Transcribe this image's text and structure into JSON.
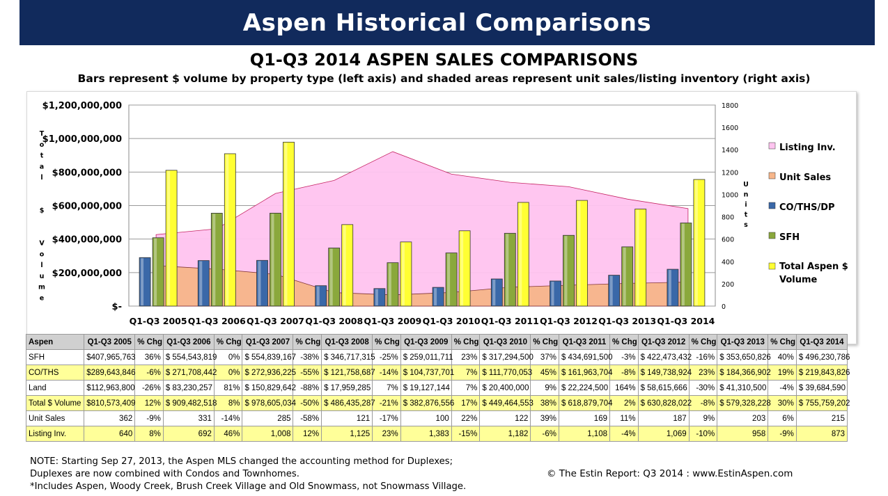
{
  "banner": "Aspen Historical Comparisons",
  "title": "Q1-Q3 2014 ASPEN SALES COMPARISONS",
  "subtitle": "Bars represent $ volume by property type (left axis) and shaded areas represent unit sales/listing inventory (right axis)",
  "chart_data": {
    "type": "bar",
    "categories": [
      "Q1-Q3 2005",
      "Q1-Q3 2006",
      "Q1-Q3 2007",
      "Q1-Q3 2008",
      "Q1-Q3 2009",
      "Q1-Q3 2010",
      "Q1-Q3 2011",
      "Q1-Q3 2012",
      "Q1-Q3 2013",
      "Q1-Q3 2014"
    ],
    "left_axis": {
      "label": "Total $ Volume",
      "ylim": [
        0,
        1200000000
      ],
      "ticks": [
        "$-",
        "$200,000,000",
        "$400,000,000",
        "$600,000,000",
        "$800,000,000",
        "$1,000,000,000",
        "$1,200,000,000"
      ]
    },
    "right_axis": {
      "label": "Units",
      "ylim": [
        0,
        1800
      ],
      "ticks": [
        "0",
        "200",
        "400",
        "600",
        "800",
        "1000",
        "1200",
        "1400",
        "1600",
        "1800"
      ]
    },
    "bar_series": [
      {
        "name": "CO/THS/DP",
        "color": "#3a68a8",
        "values": [
          289643846,
          271708442,
          272936225,
          121758687,
          104737701,
          111770053,
          161963704,
          149738924,
          184366902,
          219843826
        ]
      },
      {
        "name": "SFH",
        "color": "#8aa83c",
        "values": [
          407965763,
          554543819,
          554839167,
          346717315,
          259011711,
          317294500,
          434691500,
          422473432,
          353650826,
          496230786
        ]
      },
      {
        "name": "Total Aspen $ Volume",
        "color": "#ffff33",
        "values": [
          810573409,
          909482518,
          978605034,
          486435287,
          382876556,
          449464553,
          618879704,
          630828022,
          579328228,
          755759202
        ]
      }
    ],
    "area_series": [
      {
        "name": "Listing Inv.",
        "color": "#ffc4f0",
        "values": [
          640,
          692,
          1008,
          1125,
          1383,
          1182,
          1108,
          1069,
          958,
          873
        ]
      },
      {
        "name": "Unit Sales",
        "color": "#f7b68a",
        "values": [
          362,
          331,
          285,
          121,
          100,
          122,
          169,
          187,
          203,
          215
        ]
      }
    ],
    "legend": [
      "Listing Inv.",
      "Unit Sales",
      "CO/THS/DP",
      "SFH",
      "Total Aspen $ Volume"
    ],
    "legend_position": "right"
  },
  "table": {
    "header": [
      "Aspen",
      "Q1-Q3 2005",
      "% Chg",
      "Q1-Q3 2006",
      "% Chg",
      "Q1-Q3 2007",
      "% Chg",
      "Q1-Q3 2008",
      "% Chg",
      "Q1-Q3 2009",
      "% Chg",
      "Q1-Q3 2010",
      "% Chg",
      "Q1-Q3 2011",
      "% Chg",
      "Q1-Q3 2012",
      "% Chg",
      "Q1-Q3 2013",
      "% Chg",
      "Q1-Q3 2014"
    ],
    "rows": [
      {
        "highlight": false,
        "cells": [
          "SFH",
          "$407,965,763",
          "36%",
          "$ 554,543,819",
          "0%",
          "$ 554,839,167",
          "-38%",
          "$ 346,717,315",
          "-25%",
          "$ 259,011,711",
          "23%",
          "$ 317,294,500",
          "37%",
          "$ 434,691,500",
          "-3%",
          "$ 422,473,432",
          "-16%",
          "$ 353,650,826",
          "40%",
          "$ 496,230,786"
        ]
      },
      {
        "highlight": true,
        "cells": [
          "CO/THS",
          "$289,643,846",
          "-6%",
          "$ 271,708,442",
          "0%",
          "$ 272,936,225",
          "-55%",
          "$ 121,758,687",
          "-14%",
          "$ 104,737,701",
          "7%",
          "$ 111,770,053",
          "45%",
          "$ 161,963,704",
          "-8%",
          "$ 149,738,924",
          "23%",
          "$ 184,366,902",
          "19%",
          "$ 219,843,826"
        ]
      },
      {
        "highlight": false,
        "cells": [
          "Land",
          "$112,963,800",
          "-26%",
          "$ 83,230,257",
          "81%",
          "$ 150,829,642",
          "-88%",
          "$ 17,959,285",
          "7%",
          "$ 19,127,144",
          "7%",
          "$ 20,400,000",
          "9%",
          "$ 22,224,500",
          "164%",
          "$ 58,615,666",
          "-30%",
          "$ 41,310,500",
          "-4%",
          "$ 39,684,590"
        ]
      },
      {
        "highlight": true,
        "cells": [
          "Total $ Volume",
          "$810,573,409",
          "12%",
          "$ 909,482,518",
          "8%",
          "$ 978,605,034",
          "-50%",
          "$ 486,435,287",
          "-21%",
          "$ 382,876,556",
          "17%",
          "$ 449,464,553",
          "38%",
          "$ 618,879,704",
          "2%",
          "$ 630,828,022",
          "-8%",
          "$ 579,328,228",
          "30%",
          "$ 755,759,202"
        ]
      },
      {
        "highlight": false,
        "cells": [
          "Unit Sales",
          "362",
          "-9%",
          "331",
          "-14%",
          "285",
          "-58%",
          "121",
          "-17%",
          "100",
          "22%",
          "122",
          "39%",
          "169",
          "11%",
          "187",
          "9%",
          "203",
          "6%",
          "215"
        ]
      },
      {
        "highlight": true,
        "cells": [
          "Listing Inv.",
          "640",
          "8%",
          "692",
          "46%",
          "1,008",
          "12%",
          "1,125",
          "23%",
          "1,383",
          "-15%",
          "1,182",
          "-6%",
          "1,108",
          "-4%",
          "1,069",
          "-10%",
          "958",
          "-9%",
          "873"
        ]
      }
    ]
  },
  "note": [
    "NOTE:  Starting Sep 27, 2013, the Aspen MLS changed the accounting method for Duplexes;",
    "Duplexes are now combined with Condos and Townhomes.",
    "*Includes Aspen, Woody Creek, Brush Creek Village and Old Snowmass, not Snowmass Village."
  ],
  "credit": "© The Estin Report: Q3 2014 : www.EstinAspen.com"
}
